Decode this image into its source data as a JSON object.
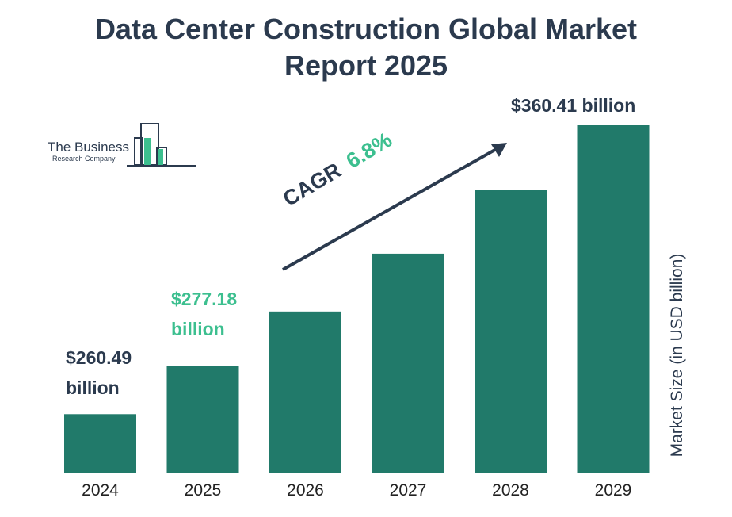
{
  "title": {
    "line1": "Data Center Construction Global Market",
    "line2": "Report 2025"
  },
  "logo": {
    "line1": "The Business",
    "line2": "Research Company"
  },
  "colors": {
    "bar": "#217a6a",
    "dark_text": "#2b3a4e",
    "accent": "#3cbf8f"
  },
  "cagr": {
    "label": "CAGR",
    "value": "6.8%"
  },
  "chart_data": {
    "type": "bar",
    "categories": [
      "2024",
      "2025",
      "2026",
      "2027",
      "2028",
      "2029"
    ],
    "values": [
      260.49,
      277.18,
      296.0,
      316.0,
      338.0,
      360.41
    ],
    "ylabel": "Market Size (in USD billion)",
    "ylim": [
      240,
      365
    ],
    "grid": false,
    "data_labels": [
      {
        "index": 0,
        "line1": "$260.49",
        "line2": "billion"
      },
      {
        "index": 1,
        "line1": "$277.18",
        "line2": "billion"
      },
      {
        "index": 5,
        "line1": "$360.41 billion",
        "line2": ""
      }
    ]
  }
}
